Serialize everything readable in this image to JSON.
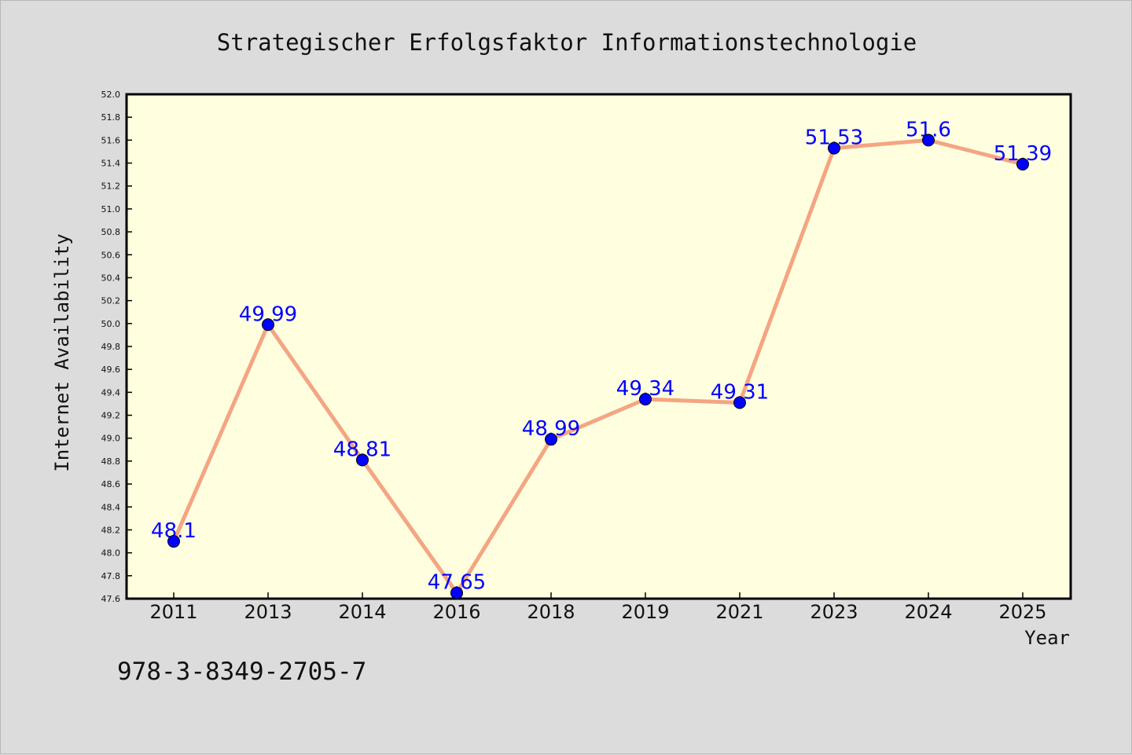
{
  "chart_data": {
    "type": "line",
    "title": "Strategischer Erfolgsfaktor Informationstechnologie",
    "xlabel": "Year",
    "ylabel": "Internet Availability",
    "categories": [
      "2011",
      "2013",
      "2014",
      "2016",
      "2018",
      "2019",
      "2021",
      "2023",
      "2024",
      "2025"
    ],
    "series": [
      {
        "values": [
          48.1,
          49.99,
          48.81,
          47.65,
          48.99,
          49.34,
          49.31,
          51.53,
          51.6,
          51.39
        ],
        "data_labels": [
          "48.1",
          "49.99",
          "48.81",
          "47.65",
          "48.99",
          "49.34",
          "49.31",
          "51.53",
          "51.6",
          "51.39"
        ],
        "line_color": "#f4a582",
        "marker_color": "#0000ff"
      }
    ],
    "ylim": [
      47.6,
      52.0
    ],
    "yticks": [
      "47.6",
      "47.8",
      "48.0",
      "48.2",
      "48.4",
      "48.6",
      "48.8",
      "49.0",
      "49.2",
      "49.4",
      "49.6",
      "49.8",
      "50.0",
      "50.2",
      "50.4",
      "50.6",
      "50.8",
      "51.0",
      "51.2",
      "51.4",
      "51.6",
      "51.8",
      "52.0"
    ],
    "grid": false,
    "legend": "none"
  },
  "footer_text": "978-3-8349-2705-7",
  "colors": {
    "background": "#dcdcdc",
    "plot_background": "#ffffe0",
    "line": "#f4a582",
    "marker": "#0000ff",
    "label": "#0000ff"
  }
}
